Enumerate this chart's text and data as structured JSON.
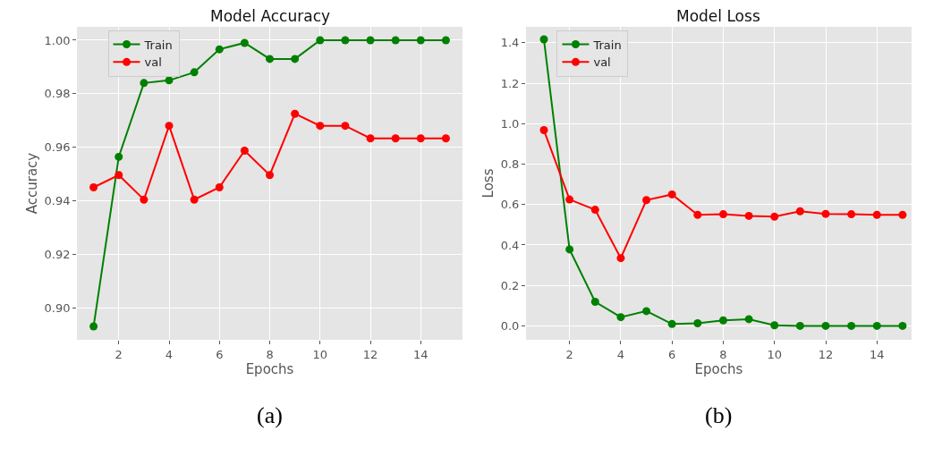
{
  "chart_data": [
    {
      "type": "line",
      "title": "Model Accuracy",
      "xlabel": "Epochs",
      "ylabel": "Accuracy",
      "annotations": [
        "(a)"
      ],
      "x": [
        1,
        2,
        3,
        4,
        5,
        6,
        7,
        8,
        9,
        10,
        11,
        12,
        13,
        14,
        15
      ],
      "series": [
        {
          "name": "Train",
          "color": "#008000",
          "values": [
            0.893,
            0.9564,
            0.984,
            0.985,
            0.988,
            0.9966,
            0.999,
            0.993,
            0.993,
            1.0,
            1.0,
            1.0,
            1.0,
            1.0,
            1.0
          ]
        },
        {
          "name": "val",
          "color": "#ff0000",
          "values": [
            0.945,
            0.9496,
            0.9404,
            0.968,
            0.9404,
            0.945,
            0.9587,
            0.9496,
            0.9725,
            0.968,
            0.968,
            0.9633,
            0.9633,
            0.9633,
            0.9633
          ]
        }
      ],
      "xlim": [
        0.34,
        15.66
      ],
      "xticks": [
        2,
        4,
        6,
        8,
        10,
        12,
        14
      ],
      "ylim": [
        0.888,
        1.005
      ],
      "yticks": [
        {
          "value": 0.9,
          "label": "0.90"
        },
        {
          "value": 0.92,
          "label": "0.92"
        },
        {
          "value": 0.94,
          "label": "0.94"
        },
        {
          "value": 0.96,
          "label": "0.96"
        },
        {
          "value": 0.98,
          "label": "0.98"
        },
        {
          "value": 1.0,
          "label": "1.00"
        }
      ],
      "grid": true,
      "legend": "top left",
      "marker": "circle",
      "line_style": "solid"
    },
    {
      "type": "line",
      "title": "Model Loss",
      "xlabel": "Epochs",
      "ylabel": "Loss",
      "annotations": [
        "(b)"
      ],
      "x": [
        1,
        2,
        3,
        4,
        5,
        6,
        7,
        8,
        9,
        10,
        11,
        12,
        13,
        14,
        15
      ],
      "series": [
        {
          "name": "Train",
          "color": "#008000",
          "values": [
            1.417,
            0.378,
            0.119,
            0.043,
            0.073,
            0.009,
            0.013,
            0.027,
            0.033,
            0.003,
            0.0,
            0.0,
            0.0,
            0.0,
            0.0
          ]
        },
        {
          "name": "val",
          "color": "#ff0000",
          "values": [
            0.968,
            0.625,
            0.574,
            0.335,
            0.622,
            0.65,
            0.549,
            0.552,
            0.544,
            0.54,
            0.567,
            0.554,
            0.552,
            0.549,
            0.549
          ]
        }
      ],
      "xlim": [
        0.3,
        15.35
      ],
      "xticks": [
        2,
        4,
        6,
        8,
        10,
        12,
        14
      ],
      "ylim": [
        -0.069,
        1.479
      ],
      "yticks": [
        {
          "value": 0.0,
          "label": "0.0"
        },
        {
          "value": 0.2,
          "label": "0.2"
        },
        {
          "value": 0.4,
          "label": "0.4"
        },
        {
          "value": 0.6,
          "label": "0.6"
        },
        {
          "value": 0.8,
          "label": "0.8"
        },
        {
          "value": 1.0,
          "label": "1.0"
        },
        {
          "value": 1.2,
          "label": "1.2"
        },
        {
          "value": 1.4,
          "label": "1.4"
        }
      ],
      "grid": true,
      "legend": "top left",
      "marker": "circle",
      "line_style": "solid"
    }
  ]
}
